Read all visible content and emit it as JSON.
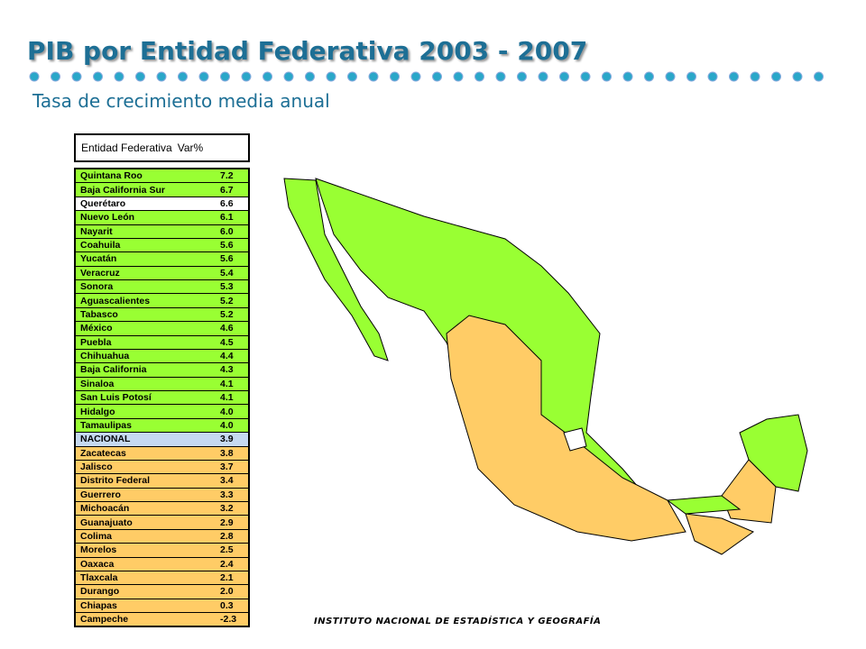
{
  "header": {
    "title": "PIB por Entidad Federativa 2003 - 2007",
    "subtitle": "Tasa de crecimiento media anual"
  },
  "table": {
    "columns": [
      "Entidad Federativa",
      "Var%"
    ],
    "rows": [
      {
        "name": "Quintana Roo",
        "value": "7.2",
        "color": "#99ff33"
      },
      {
        "name": "Baja California Sur",
        "value": "6.7",
        "color": "#99ff33"
      },
      {
        "name": "Querétaro",
        "value": "6.6",
        "color": "#ffffff"
      },
      {
        "name": "Nuevo León",
        "value": "6.1",
        "color": "#99ff33"
      },
      {
        "name": "Nayarit",
        "value": "6.0",
        "color": "#99ff33"
      },
      {
        "name": "Coahuila",
        "value": "5.6",
        "color": "#99ff33"
      },
      {
        "name": "Yucatán",
        "value": "5.6",
        "color": "#99ff33"
      },
      {
        "name": "Veracruz",
        "value": "5.4",
        "color": "#99ff33"
      },
      {
        "name": "Sonora",
        "value": "5.3",
        "color": "#99ff33"
      },
      {
        "name": "Aguascalientes",
        "value": "5.2",
        "color": "#99ff33"
      },
      {
        "name": "Tabasco",
        "value": "5.2",
        "color": "#99ff33"
      },
      {
        "name": "México",
        "value": "4.6",
        "color": "#99ff33"
      },
      {
        "name": "Puebla",
        "value": "4.5",
        "color": "#99ff33"
      },
      {
        "name": "Chihuahua",
        "value": "4.4",
        "color": "#99ff33"
      },
      {
        "name": "Baja California",
        "value": "4.3",
        "color": "#99ff33"
      },
      {
        "name": "Sinaloa",
        "value": "4.1",
        "color": "#99ff33"
      },
      {
        "name": "San Luis Potosí",
        "value": "4.1",
        "color": "#99ff33"
      },
      {
        "name": "Hidalgo",
        "value": "4.0",
        "color": "#99ff33"
      },
      {
        "name": "Tamaulipas",
        "value": "4.0",
        "color": "#99ff33"
      },
      {
        "name": "NACIONAL",
        "value": "3.9",
        "color": "#c6d9f1"
      },
      {
        "name": "Zacatecas",
        "value": "3.8",
        "color": "#ffcc66"
      },
      {
        "name": "Jalisco",
        "value": "3.7",
        "color": "#ffcc66"
      },
      {
        "name": "Distrito Federal",
        "value": "3.4",
        "color": "#ffcc66"
      },
      {
        "name": "Guerrero",
        "value": "3.3",
        "color": "#ffcc66"
      },
      {
        "name": "Michoacán",
        "value": "3.2",
        "color": "#ffcc66"
      },
      {
        "name": "Guanajuato",
        "value": "2.9",
        "color": "#ffcc66"
      },
      {
        "name": "Colima",
        "value": "2.8",
        "color": "#ffcc66"
      },
      {
        "name": "Morelos",
        "value": "2.5",
        "color": "#ffcc66"
      },
      {
        "name": "Oaxaca",
        "value": "2.4",
        "color": "#ffcc66"
      },
      {
        "name": "Tlaxcala",
        "value": "2.1",
        "color": "#ffcc66"
      },
      {
        "name": "Durango",
        "value": "2.0",
        "color": "#ffcc66"
      },
      {
        "name": "Chiapas",
        "value": "0.3",
        "color": "#ffcc66"
      },
      {
        "name": "Campeche",
        "value": "-2.3",
        "color": "#ffcc66"
      }
    ]
  },
  "footer": {
    "text": "INSTITUTO NACIONAL DE ESTADÍSTICA Y GEOGRAFÍA"
  }
}
